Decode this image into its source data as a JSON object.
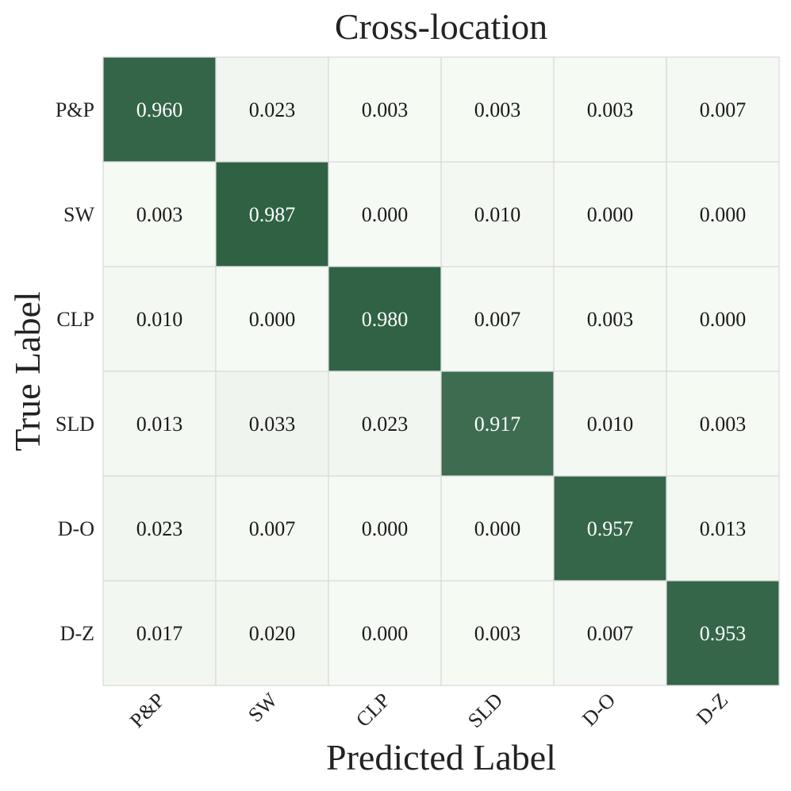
{
  "chart_data": {
    "type": "heatmap",
    "title": "Cross-location",
    "xlabel": "Predicted Label",
    "ylabel": "True Label",
    "x_categories": [
      "P&P",
      "SW",
      "CLP",
      "SLD",
      "D-O",
      "D-Z"
    ],
    "y_categories": [
      "P&P",
      "SW",
      "CLP",
      "SLD",
      "D-O",
      "D-Z"
    ],
    "values": [
      [
        0.96,
        0.023,
        0.003,
        0.003,
        0.003,
        0.007
      ],
      [
        0.003,
        0.987,
        0.0,
        0.01,
        0.0,
        0.0
      ],
      [
        0.01,
        0.0,
        0.98,
        0.007,
        0.003,
        0.0
      ],
      [
        0.013,
        0.033,
        0.023,
        0.917,
        0.01,
        0.003
      ],
      [
        0.023,
        0.007,
        0.0,
        0.0,
        0.957,
        0.013
      ],
      [
        0.017,
        0.02,
        0.0,
        0.003,
        0.007,
        0.953
      ]
    ],
    "value_format_decimals": 3,
    "vrange": [
      0,
      1
    ],
    "colormap": {
      "low": "#f6faf4",
      "high": "#2c5f41"
    },
    "grid_color": "#d9d9d9",
    "text_color_light": "#ffffff",
    "text_color_dark": "#1a1a1a"
  }
}
